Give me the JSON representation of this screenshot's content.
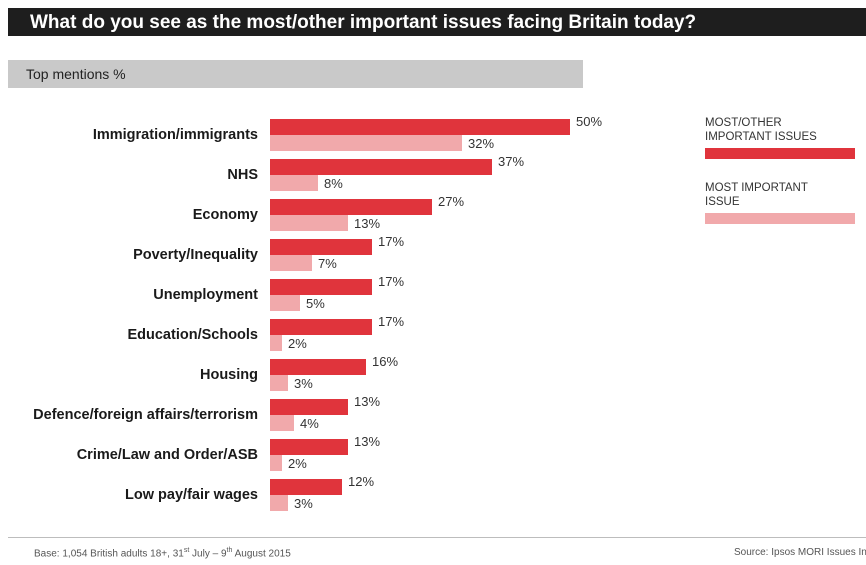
{
  "header": {
    "title": "What do you see as the most/other important issues facing Britain today?",
    "subtitle": "Top mentions %"
  },
  "colors": {
    "series_primary": "#e0343c",
    "series_secondary": "#f1a9ab",
    "title_bar": "#1e1e1e",
    "subtitle_bar": "#c9c9c9"
  },
  "chart_data": {
    "type": "bar",
    "orientation": "horizontal",
    "categories": [
      "Immigration/immigrants",
      "NHS",
      "Economy",
      "Poverty/Inequality",
      "Unemployment",
      "Education/Schools",
      "Housing",
      "Defence/foreign affairs/terrorism",
      "Crime/Law and Order/ASB",
      "Low pay/fair wages"
    ],
    "series": [
      {
        "name": "MOST/OTHER IMPORTANT ISSUES",
        "values": [
          50,
          37,
          27,
          17,
          17,
          17,
          16,
          13,
          13,
          12
        ]
      },
      {
        "name": "MOST IMPORTANT ISSUE",
        "values": [
          32,
          8,
          13,
          7,
          5,
          2,
          3,
          4,
          2,
          3
        ]
      }
    ],
    "value_suffix": "%",
    "xlim": [
      0,
      50
    ],
    "grid": false,
    "legend_position": "right"
  },
  "legend": {
    "items": [
      {
        "label_line1": "MOST/OTHER",
        "label_line2": "IMPORTANT ISSUES"
      },
      {
        "label_line1": "MOST IMPORTANT",
        "label_line2": "ISSUE"
      }
    ]
  },
  "footer": {
    "base_prefix": "Base: 1,054 British adults 18+, 31",
    "base_sup1": "st",
    "base_mid": " July – 9",
    "base_sup2": "th",
    "base_suffix": " August 2015",
    "source": "Source: Ipsos MORI Issues Index"
  }
}
